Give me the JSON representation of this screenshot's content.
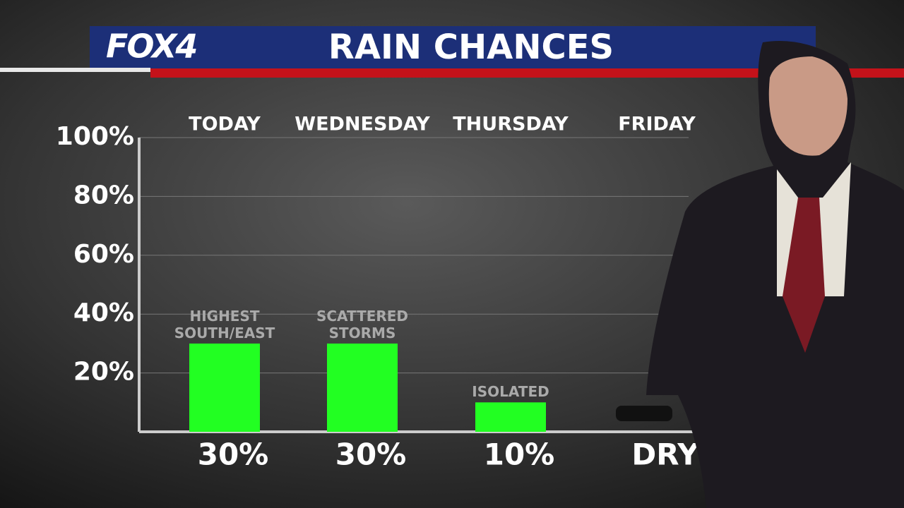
{
  "header": {
    "logo": "FOX4"
  },
  "chart_data": {
    "type": "bar",
    "title": "RAIN CHANCES",
    "categories": [
      "TODAY",
      "WEDNESDAY",
      "THURSDAY",
      "FRIDAY"
    ],
    "values": [
      30,
      30,
      10,
      0
    ],
    "value_labels": [
      "30%",
      "30%",
      "10%",
      "DRY"
    ],
    "annotations": [
      "HIGHEST SOUTH/EAST",
      "SCATTERED STORMS",
      "ISOLATED",
      null
    ],
    "color": "#22ff22",
    "ylim": [
      0,
      100
    ],
    "yticks": [
      {
        "value": 20,
        "label": "20%"
      },
      {
        "value": 40,
        "label": "40%"
      },
      {
        "value": 60,
        "label": "60%"
      },
      {
        "value": 80,
        "label": "80%"
      },
      {
        "value": 100,
        "label": "100%"
      }
    ],
    "grid": true
  }
}
